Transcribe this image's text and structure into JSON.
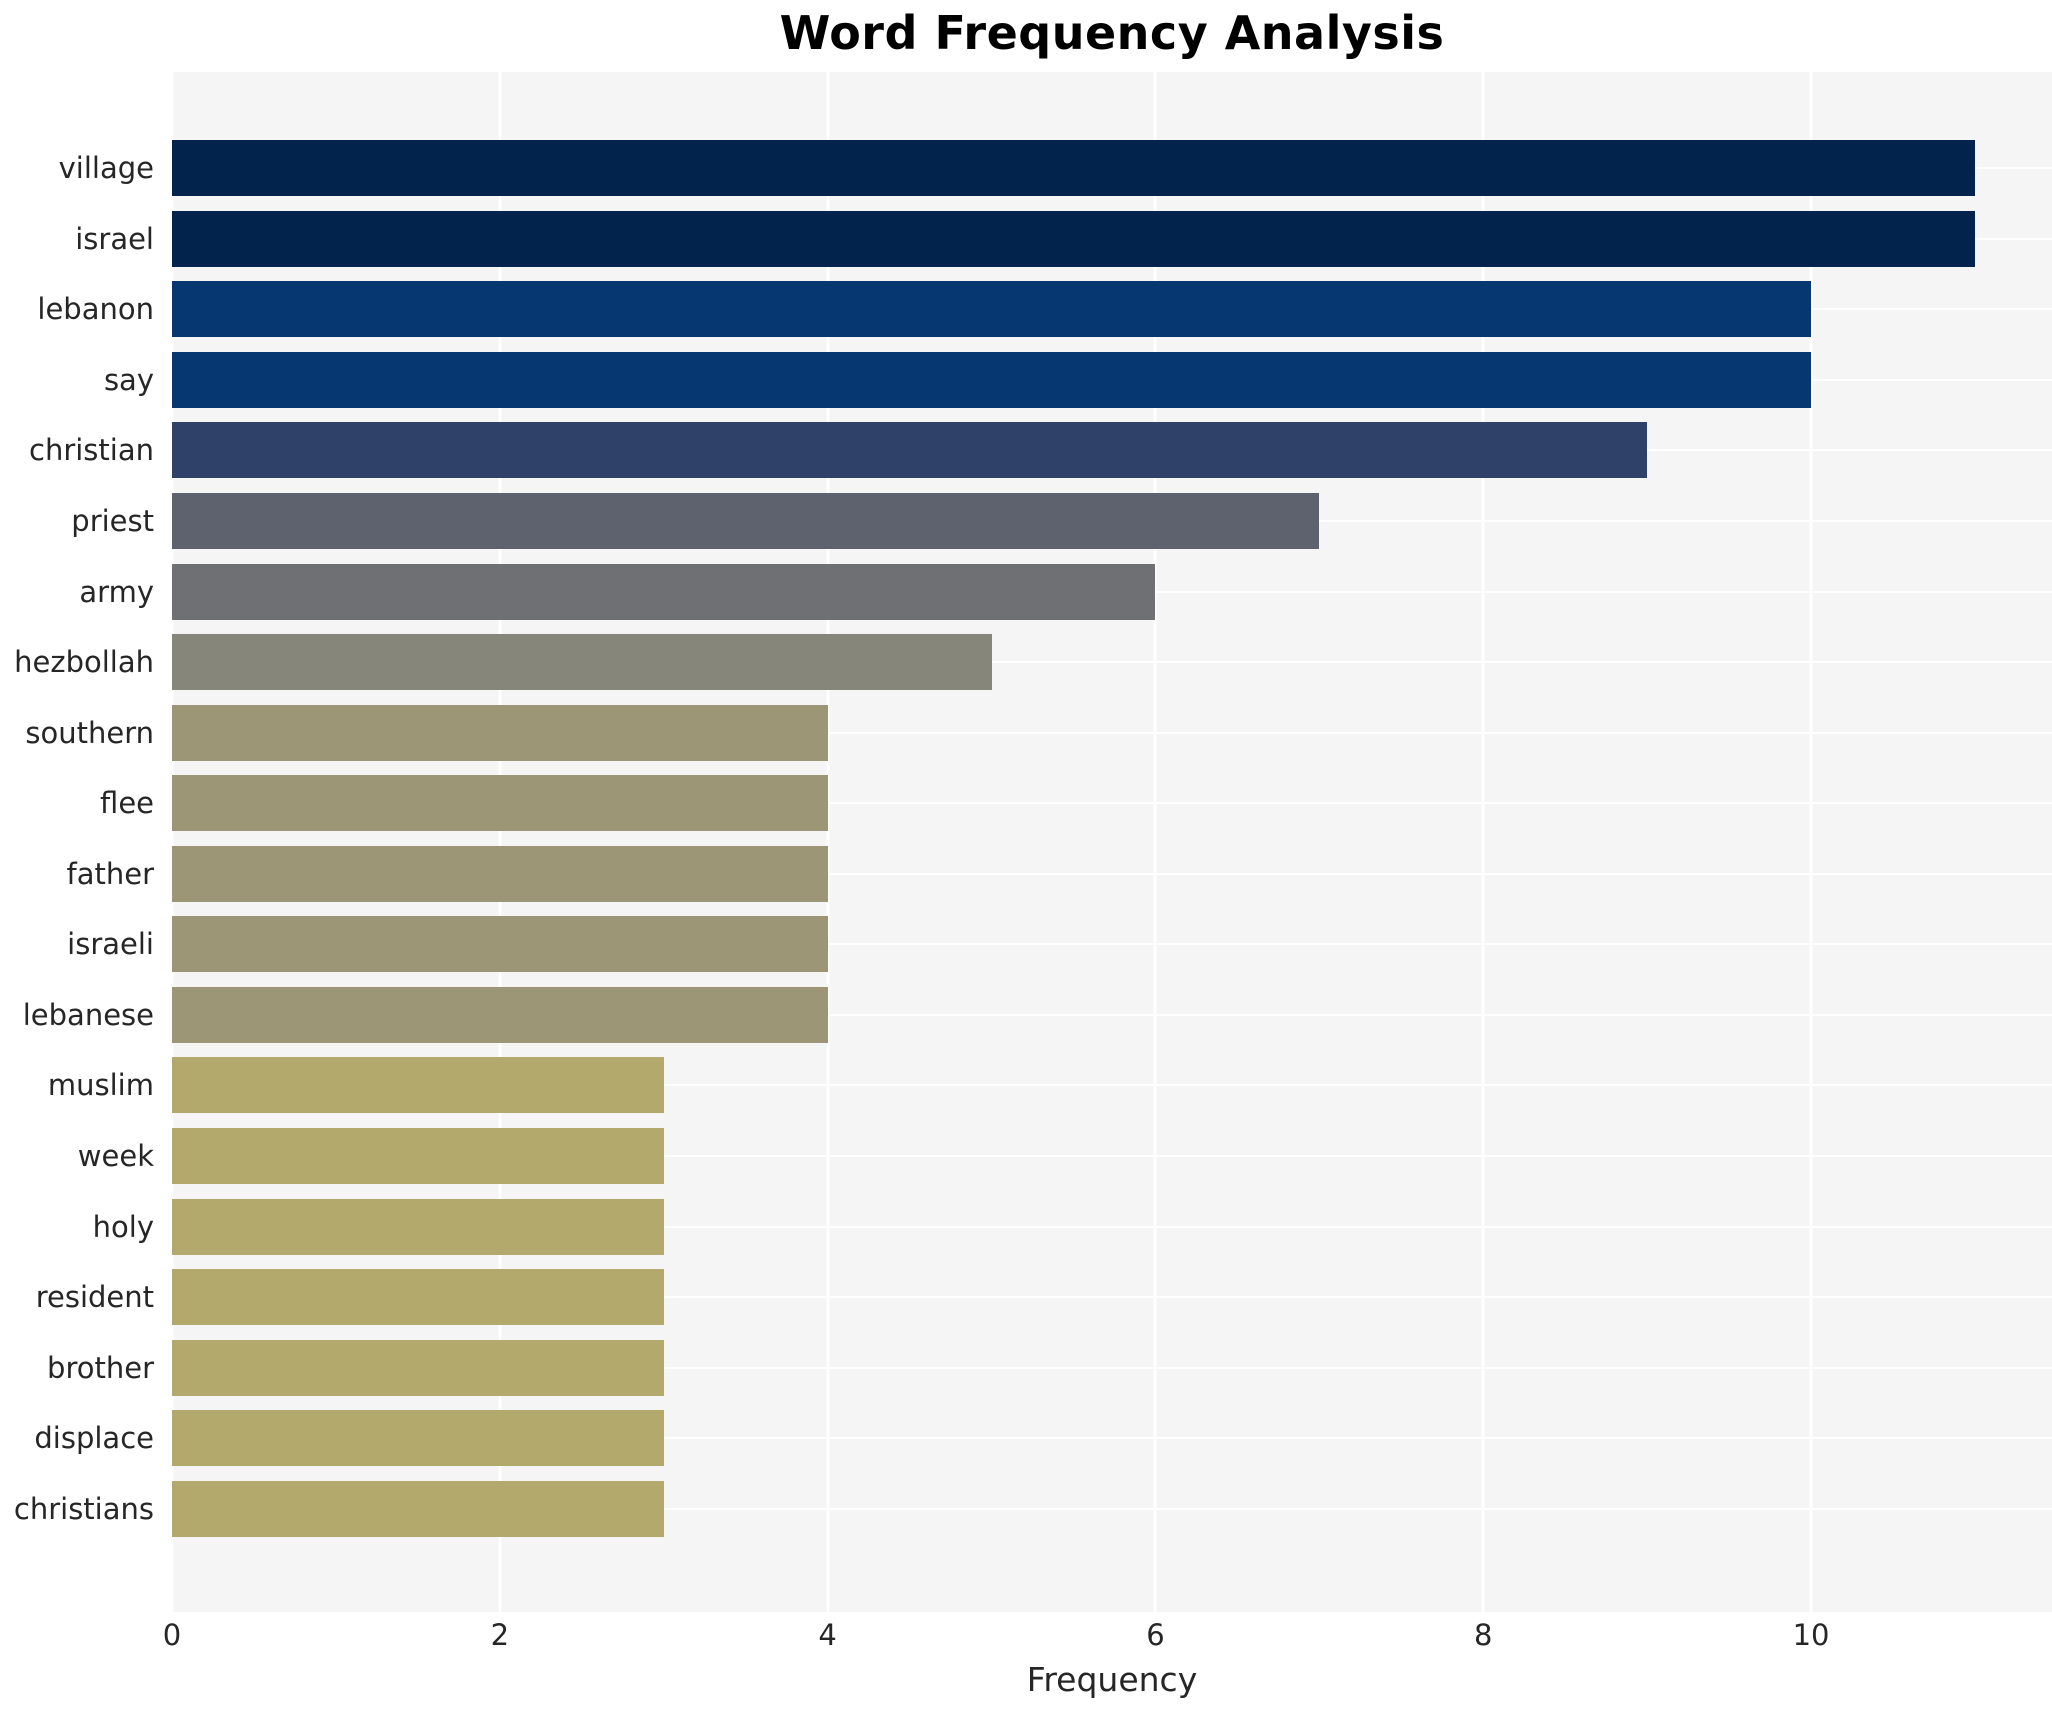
{
  "title": "Word Frequency Analysis",
  "xlabel": "Frequency",
  "style": {
    "plot_bg": "#f5f5f6",
    "grid_color": "#ffffff",
    "text_color": "#262626",
    "title_color": "#000000"
  },
  "chart_data": {
    "type": "bar",
    "orientation": "horizontal",
    "title": "Word Frequency Analysis",
    "xlabel": "Frequency",
    "ylabel": "",
    "legend": "none",
    "grid": "on",
    "xlim": [
      0,
      11.47
    ],
    "xticks": [
      0,
      2,
      4,
      6,
      8,
      10
    ],
    "categories": [
      "village",
      "israel",
      "lebanon",
      "say",
      "christian",
      "priest",
      "army",
      "hezbollah",
      "southern",
      "flee",
      "father",
      "israeli",
      "lebanese",
      "muslim",
      "week",
      "holy",
      "resident",
      "brother",
      "displace",
      "christians"
    ],
    "values": [
      11,
      11,
      10,
      10,
      9,
      7,
      6,
      5,
      4,
      4,
      4,
      4,
      4,
      3,
      3,
      3,
      3,
      3,
      3,
      3
    ],
    "bar_colors": [
      "#02234c",
      "#02234c",
      "#063770",
      "#063770",
      "#2f4168",
      "#5e616e",
      "#6f7073",
      "#87867a",
      "#9d9676",
      "#9d9676",
      "#9d9676",
      "#9d9676",
      "#9d9676",
      "#b4a96c",
      "#b4a96c",
      "#b4a96c",
      "#b4a96c",
      "#b4a96c",
      "#b4a96c",
      "#b4a96c"
    ],
    "colormap": "cividis"
  }
}
